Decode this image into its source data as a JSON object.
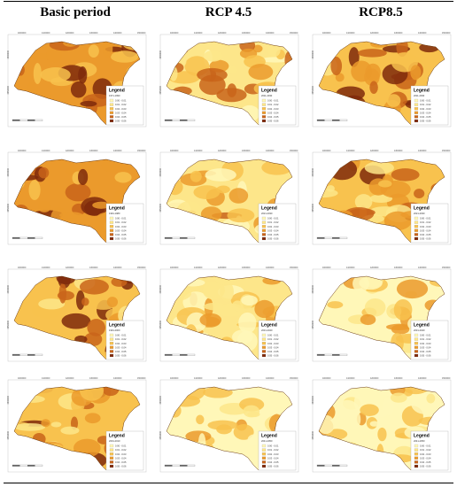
{
  "columns": [
    "Basic period",
    "RCP 4.5",
    "RCP8.5"
  ],
  "legend_title": "Legend",
  "legend_ranges": [
    "0.00 - 0.01",
    "0.01 - 0.02",
    "0.02 - 0.03",
    "0.03 - 0.04",
    "0.04 - 0.05",
    "0.05 - 0.06"
  ],
  "legend_colors": [
    "#fff7b8",
    "#fde68a",
    "#f8c24e",
    "#eb9a2c",
    "#c9641a",
    "#7f2a0c"
  ],
  "periods": [
    [
      "1971-1990",
      "2011-2030",
      "2011-2030"
    ],
    [
      "1991-1980",
      "2021-2030",
      "2021-2030"
    ],
    [
      "1991-2000",
      "2031-2040",
      "2031-2040"
    ],
    [
      "2001-2010",
      "2041-2050",
      "2041-2050"
    ]
  ],
  "x_ticks": [
    "4000000",
    "4100000",
    "4200000",
    "4300000",
    "4400000",
    "4500000"
  ],
  "y_ticks": [
    "3900000",
    "3950000"
  ],
  "intensity": [
    [
      0.75,
      0.45,
      0.65
    ],
    [
      0.7,
      0.35,
      0.55
    ],
    [
      0.65,
      0.3,
      0.25
    ],
    [
      0.6,
      0.2,
      0.2
    ]
  ]
}
